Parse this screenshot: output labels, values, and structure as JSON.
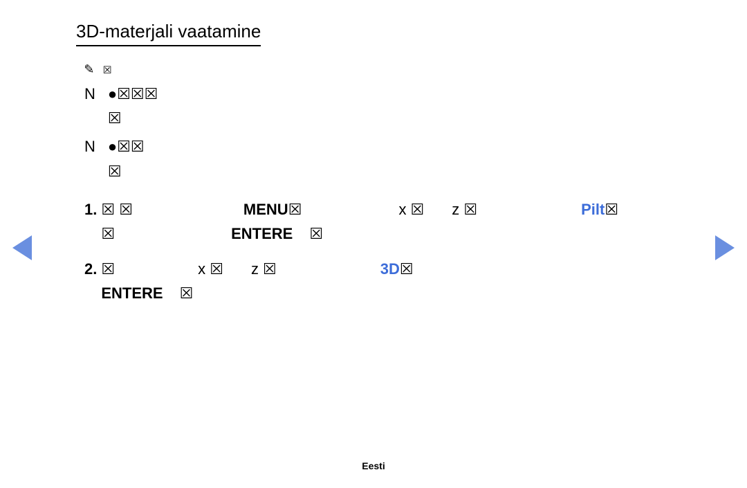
{
  "title": "3D-materjali vaatamine",
  "note_icon": "✎ ☒",
  "notes": [
    {
      "marker": "N",
      "line1": "●☒☒☒",
      "line2": "☒"
    },
    {
      "marker": "N",
      "line1": "●☒☒",
      "line2": "☒"
    }
  ],
  "steps": [
    {
      "num": "1.",
      "segments_line1": [
        {
          "text": "☒ ☒",
          "style": "plain",
          "spacer": 160
        },
        {
          "text": "MENU",
          "style": "bold",
          "spacer": 0
        },
        {
          "text": "☒",
          "style": "plain",
          "spacer": 140
        },
        {
          "text": "x ☒",
          "style": "plain",
          "spacer": 40
        },
        {
          "text": "z ☒",
          "style": "plain",
          "spacer": 150
        },
        {
          "text": "Pilt",
          "style": "highlight",
          "spacer": 0
        },
        {
          "text": "☒",
          "style": "plain",
          "spacer": 0
        }
      ],
      "segments_line2": [
        {
          "text": "☒",
          "style": "plain",
          "spacer": 168
        },
        {
          "text": "ENTER",
          "style": "bold",
          "spacer": 0
        },
        {
          "text": "E",
          "style": "enter-e",
          "spacer": 24
        },
        {
          "text": "☒",
          "style": "plain",
          "spacer": 0
        }
      ]
    },
    {
      "num": "2.",
      "segments_line1": [
        {
          "text": "☒",
          "style": "plain",
          "spacer": 120
        },
        {
          "text": "x ☒",
          "style": "plain",
          "spacer": 40
        },
        {
          "text": "z ☒",
          "style": "plain",
          "spacer": 150
        },
        {
          "text": "3D",
          "style": "highlight",
          "spacer": 0
        },
        {
          "text": "☒",
          "style": "plain",
          "spacer": 298
        },
        {
          "text": "ENTER",
          "style": "bold",
          "spacer": 0
        },
        {
          "text": "E",
          "style": "enter-e",
          "spacer": 24
        },
        {
          "text": "☒",
          "style": "plain",
          "spacer": 0
        }
      ],
      "segments_line2": []
    }
  ],
  "arrow_color": "#6a8fe0",
  "footer": "Eesti"
}
